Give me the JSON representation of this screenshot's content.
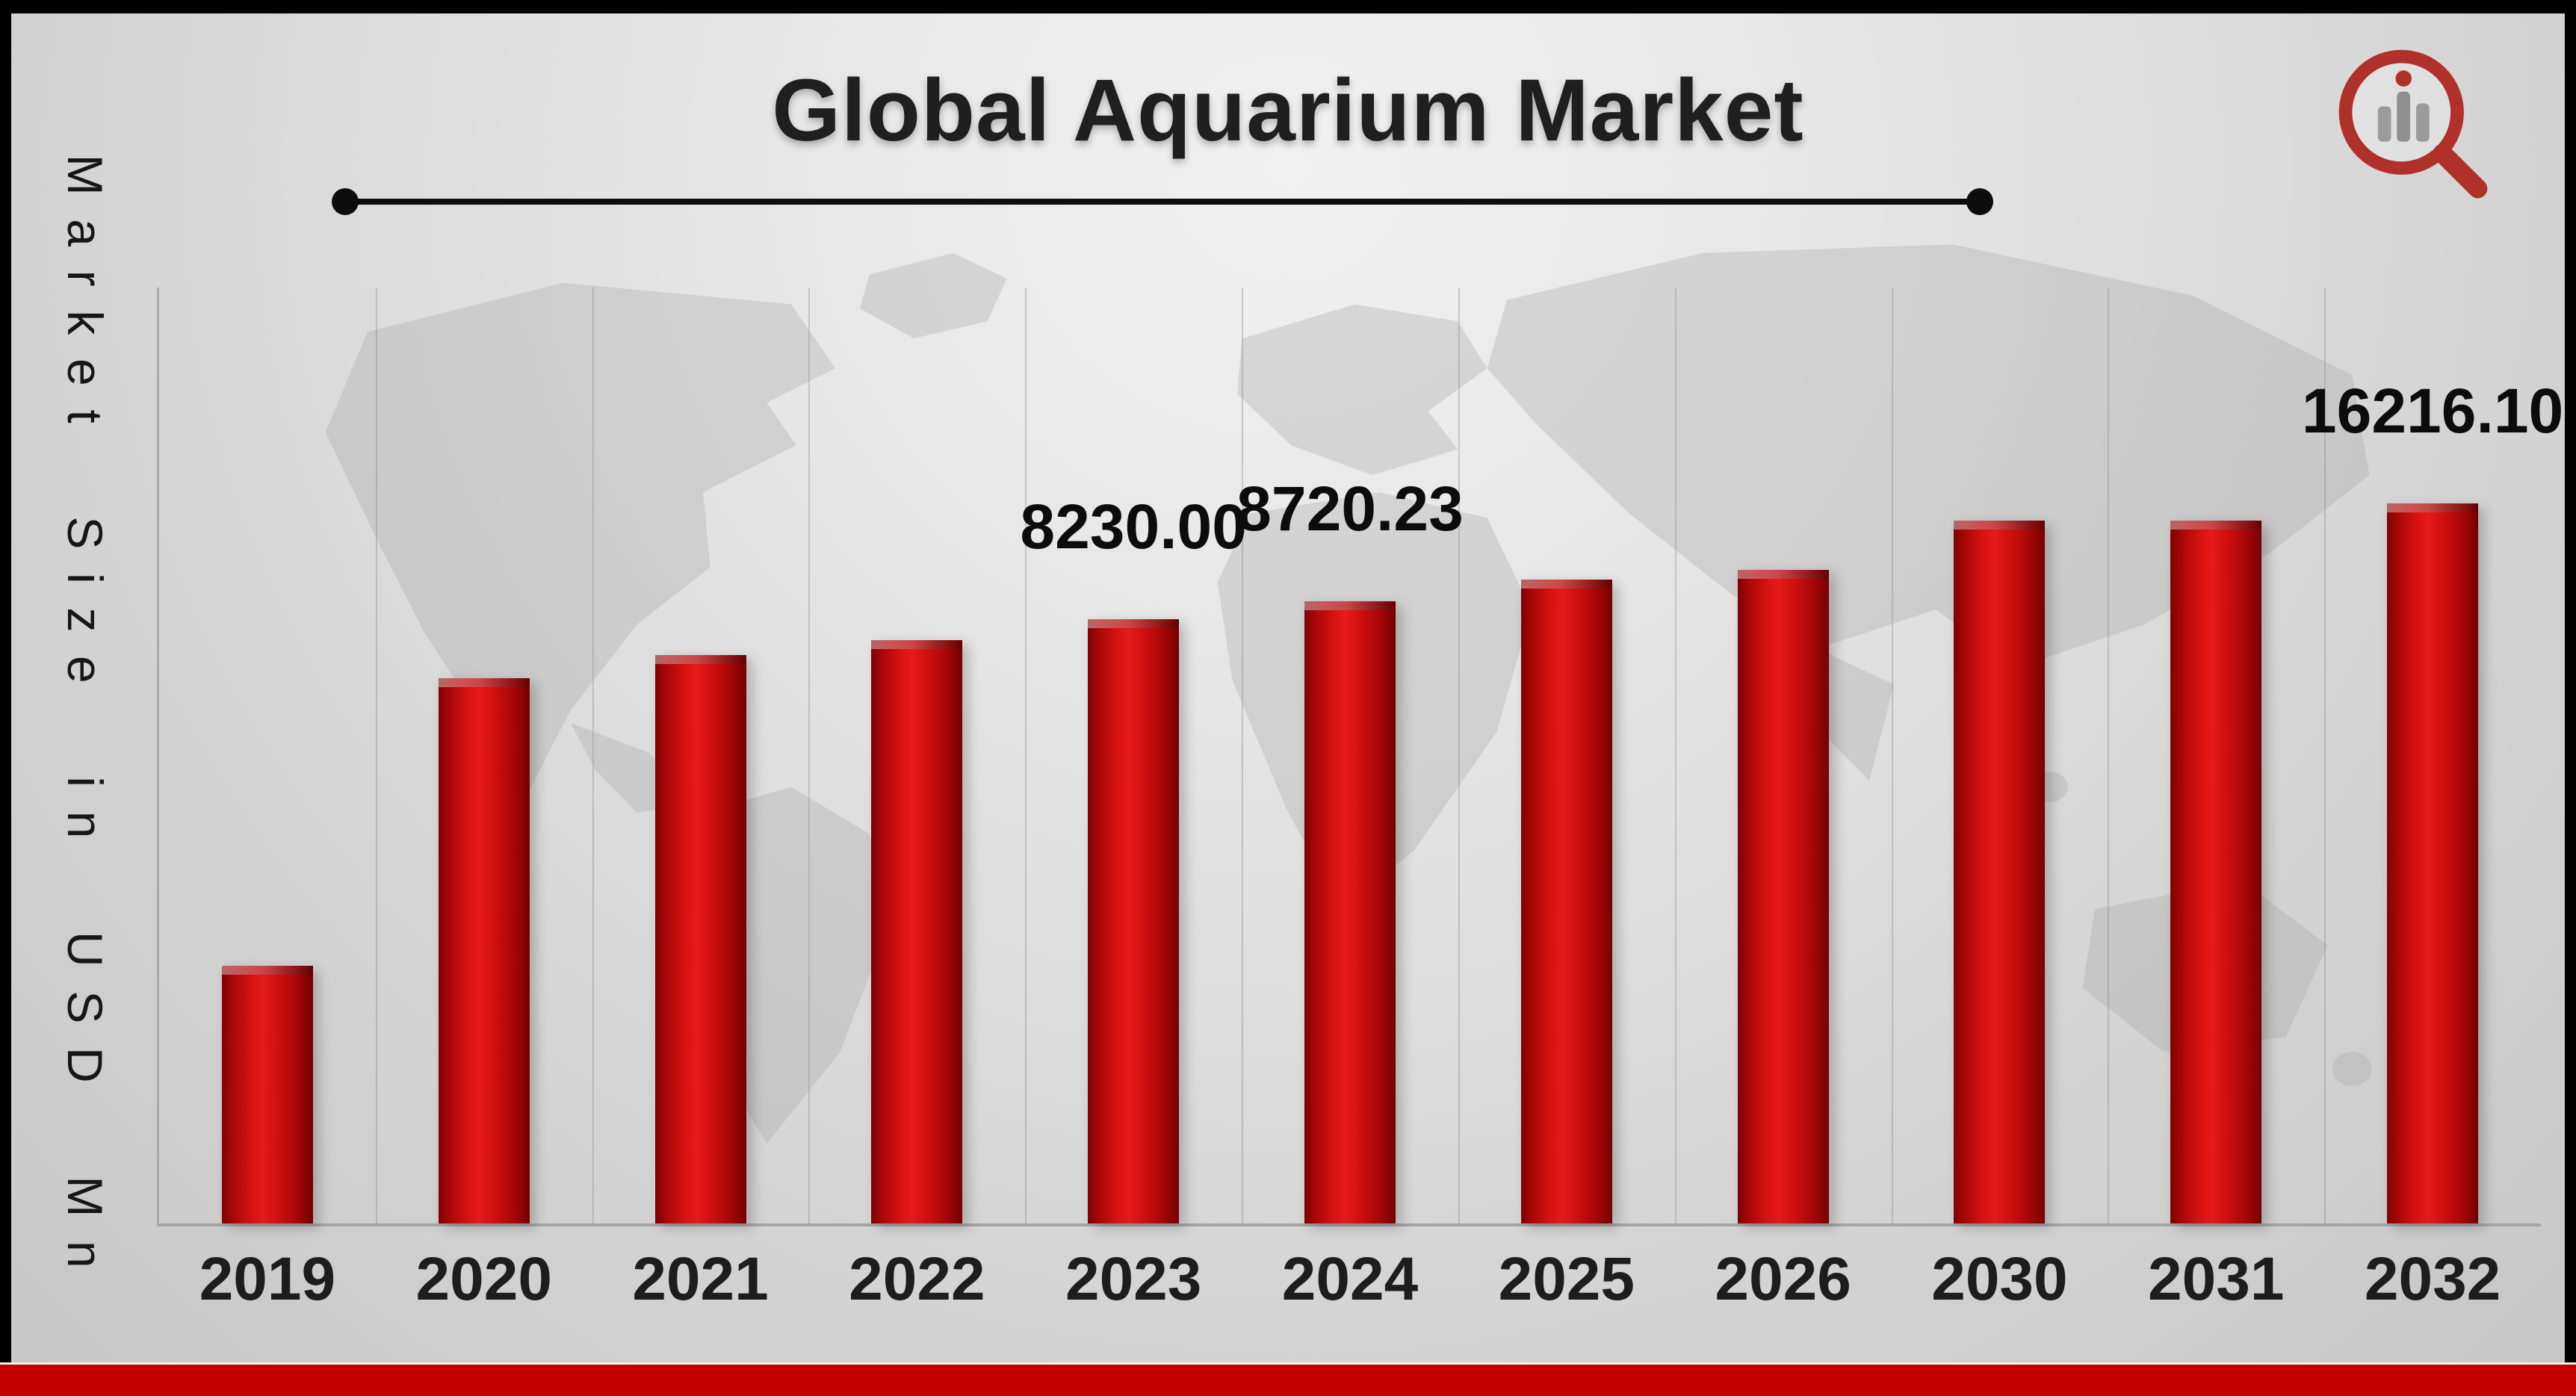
{
  "header": {
    "title": "Global Aquarium Market"
  },
  "logo": {
    "icon": "magnifier-bar-chart-logo-icon"
  },
  "colors": {
    "bar_red": "#c40d0d",
    "bottom_strip_red": "#c30000",
    "frame_black": "#000000",
    "text_dark": "#1d1d1d"
  },
  "chart_data": {
    "type": "bar",
    "title": "Global Aquarium Market",
    "xlabel": "",
    "ylabel": "Market Size in USD Mn",
    "unit": "USD Mn",
    "legend": "none",
    "grid": "vertical-light",
    "categories": [
      "2019",
      "2020",
      "2021",
      "2022",
      "2023",
      "2024",
      "2025",
      "2026",
      "2030",
      "2031",
      "2032"
    ],
    "values": [
      3000,
      6920,
      7330,
      7767,
      8230.0,
      8720.23,
      9423,
      10183,
      13887,
      15006,
      16216.1
    ],
    "value_labels": [
      "",
      "",
      "",
      "",
      "8230.00",
      "8720.23",
      "",
      "",
      "",
      "",
      "16216.10"
    ],
    "bar_heights_frac": [
      0.275,
      0.583,
      0.607,
      0.623,
      0.646,
      0.665,
      0.688,
      0.698,
      0.751,
      0.751,
      0.769
    ],
    "labeled_points": {
      "2023": 8230.0,
      "2024": 8720.23,
      "2032": 16216.1
    }
  }
}
